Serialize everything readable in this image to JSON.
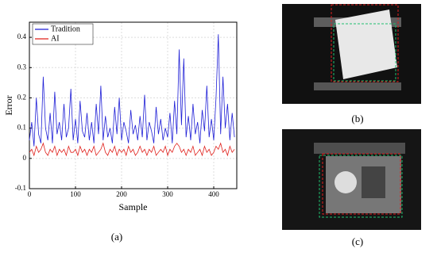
{
  "chart_data": {
    "type": "line",
    "x_label": "Sample",
    "y_label": "Error",
    "x": [
      0,
      5,
      10,
      15,
      20,
      25,
      30,
      35,
      40,
      45,
      50,
      55,
      60,
      65,
      70,
      75,
      80,
      85,
      90,
      95,
      100,
      105,
      110,
      115,
      120,
      125,
      130,
      135,
      140,
      145,
      150,
      155,
      160,
      165,
      170,
      175,
      180,
      185,
      190,
      195,
      200,
      205,
      210,
      215,
      220,
      225,
      230,
      235,
      240,
      245,
      250,
      255,
      260,
      265,
      270,
      275,
      280,
      285,
      290,
      295,
      300,
      305,
      310,
      315,
      320,
      325,
      330,
      335,
      340,
      345,
      350,
      355,
      360,
      365,
      370,
      375,
      380,
      385,
      390,
      395,
      400,
      405,
      410,
      415,
      420,
      425,
      430,
      435,
      440,
      445
    ],
    "series": [
      {
        "name": "Tradition",
        "color": "#1f1fd6",
        "values": [
          0.06,
          0.12,
          0.04,
          0.2,
          0.08,
          0.05,
          0.27,
          0.1,
          0.06,
          0.15,
          0.05,
          0.22,
          0.08,
          0.12,
          0.06,
          0.18,
          0.07,
          0.1,
          0.23,
          0.06,
          0.13,
          0.05,
          0.19,
          0.09,
          0.07,
          0.15,
          0.06,
          0.12,
          0.05,
          0.18,
          0.08,
          0.24,
          0.06,
          0.14,
          0.07,
          0.1,
          0.05,
          0.17,
          0.08,
          0.2,
          0.06,
          0.12,
          0.09,
          0.05,
          0.16,
          0.08,
          0.11,
          0.06,
          0.14,
          0.07,
          0.21,
          0.06,
          0.12,
          0.09,
          0.05,
          0.17,
          0.08,
          0.13,
          0.06,
          0.1,
          0.07,
          0.15,
          0.05,
          0.19,
          0.08,
          0.36,
          0.11,
          0.33,
          0.07,
          0.14,
          0.06,
          0.18,
          0.08,
          0.12,
          0.05,
          0.16,
          0.09,
          0.24,
          0.07,
          0.13,
          0.06,
          0.2,
          0.41,
          0.08,
          0.27,
          0.1,
          0.18,
          0.06,
          0.15,
          0.07
        ]
      },
      {
        "name": "AI",
        "color": "#e0201b",
        "values": [
          0.02,
          0.03,
          0.01,
          0.04,
          0.02,
          0.03,
          0.05,
          0.02,
          0.01,
          0.03,
          0.02,
          0.04,
          0.01,
          0.03,
          0.02,
          0.03,
          0.01,
          0.04,
          0.02,
          0.02,
          0.03,
          0.01,
          0.04,
          0.02,
          0.03,
          0.01,
          0.03,
          0.02,
          0.04,
          0.01,
          0.02,
          0.03,
          0.05,
          0.02,
          0.01,
          0.03,
          0.02,
          0.04,
          0.01,
          0.03,
          0.02,
          0.03,
          0.01,
          0.04,
          0.02,
          0.03,
          0.01,
          0.02,
          0.04,
          0.02,
          0.03,
          0.01,
          0.03,
          0.02,
          0.04,
          0.01,
          0.02,
          0.03,
          0.02,
          0.04,
          0.01,
          0.03,
          0.02,
          0.04,
          0.05,
          0.04,
          0.02,
          0.03,
          0.01,
          0.03,
          0.02,
          0.04,
          0.01,
          0.02,
          0.03,
          0.01,
          0.04,
          0.02,
          0.03,
          0.01,
          0.02,
          0.04,
          0.03,
          0.05,
          0.02,
          0.03,
          0.01,
          0.04,
          0.02,
          0.03
        ]
      }
    ],
    "xlim": [
      0,
      450
    ],
    "ylim": [
      -0.1,
      0.45
    ],
    "xticks": [
      0,
      100,
      200,
      300,
      400
    ],
    "yticks": [
      -0.1,
      0.0,
      0.1,
      0.2,
      0.3,
      0.4
    ],
    "grid": true,
    "legend": "upper-left"
  },
  "panel_labels": {
    "a": "(a)",
    "b": "(b)",
    "c": "(c)"
  }
}
